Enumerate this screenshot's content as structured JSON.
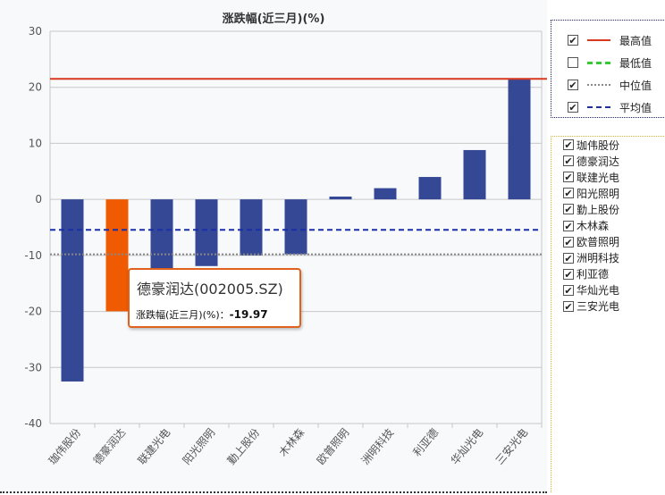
{
  "chart_data": {
    "type": "bar",
    "title": "涨跌幅(近三月)(%)",
    "xlabel": "",
    "ylabel": "",
    "ylim": [
      -40,
      30
    ],
    "yticks": [
      30,
      20,
      10,
      0,
      -10,
      -20,
      -30,
      -40
    ],
    "grid": true,
    "categories": [
      "珈伟股份",
      "德豪润达",
      "联建光电",
      "阳光照明",
      "勤上股份",
      "木林森",
      "欧普照明",
      "洲明科技",
      "利亚德",
      "华灿光电",
      "三安光电"
    ],
    "values": [
      -32.5,
      -19.97,
      -12.5,
      -11.9,
      -10.0,
      -9.8,
      0.5,
      2.0,
      4.0,
      8.8,
      21.5
    ],
    "highlight_index": 1,
    "colors": {
      "bar": "#344895",
      "highlight": "#f05a00",
      "max": "#d9391f",
      "min": "#33cc33",
      "median": "#888888",
      "mean": "#1a2fa8"
    },
    "reference_lines": {
      "max": 21.5,
      "median": -9.8,
      "mean": -5.44
    }
  },
  "lines_legend": [
    {
      "label": "最高值",
      "checked": true,
      "style": "solid",
      "color": "#d9391f"
    },
    {
      "label": "最低值",
      "checked": false,
      "style": "dashdot",
      "color": "#33cc33"
    },
    {
      "label": "中位值",
      "checked": true,
      "style": "dotted",
      "color": "#888888"
    },
    {
      "label": "平均值",
      "checked": true,
      "style": "dashed",
      "color": "#1a2fa8"
    }
  ],
  "series_legend": [
    "珈伟股份",
    "德豪润达",
    "联建光电",
    "阳光照明",
    "勤上股份",
    "木林森",
    "欧普照明",
    "洲明科技",
    "利亚德",
    "华灿光电",
    "三安光电"
  ],
  "tooltip": {
    "title": "德豪润达(002005.SZ)",
    "label": "涨跌幅(近三月)(%)：",
    "value": "-19.97"
  }
}
